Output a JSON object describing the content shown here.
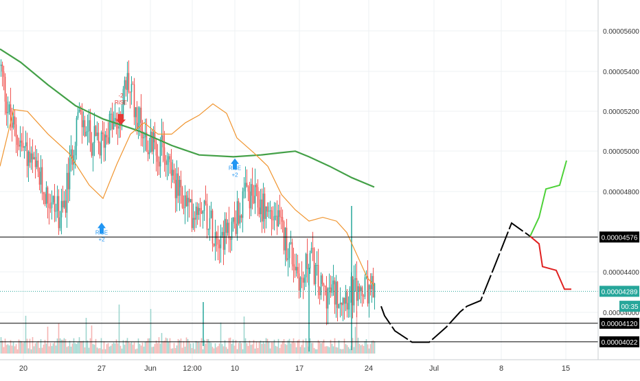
{
  "chart_data": {
    "type": "candlestick",
    "x_axis": {
      "labels": [
        "20",
        "27",
        "Jun",
        "12:00",
        "10",
        "17",
        "24",
        "Jul",
        "8",
        "15"
      ]
    },
    "y_axis": {
      "ticks": [
        "0.00005600",
        "0.00005400",
        "0.00005200",
        "0.00005000",
        "0.00004800",
        "0.00004400",
        "0.00004000"
      ],
      "range": [
        3.96e-05,
        5.8e-05
      ]
    },
    "price_tags": [
      {
        "text": "0.00004576",
        "value": 4.576e-05,
        "style": "dark",
        "line": "solid"
      },
      {
        "text": "0.00004289",
        "value": 4.289e-05,
        "style": "teal",
        "line": "dotted"
      },
      {
        "text": "00:35",
        "value": 4.21e-05,
        "style": "teal",
        "line": "none"
      },
      {
        "text": "0.00004120",
        "value": 4.12e-05,
        "style": "dark",
        "line": "solid"
      },
      {
        "text": "0.00004022",
        "value": 4.022e-05,
        "style": "dark",
        "line": "solid"
      }
    ],
    "signals": [
      {
        "side": "short",
        "upper": "-2",
        "lower": "RiSE",
        "label_value": 5.27e-05,
        "arrow_value": 5.19e-05
      },
      {
        "side": "long",
        "upper": "RiSE",
        "lower": "+2",
        "label_value": 4.59e-05,
        "arrow_value": 4.63e-05
      },
      {
        "side": "long",
        "upper": "RiSE",
        "lower": "+2",
        "label_value": 4.93e-05,
        "arrow_value": 4.97e-05
      }
    ],
    "candles_approx": {
      "count": 270,
      "start": 5.45e-05,
      "waypoints": [
        [
          0,
          5.48e-05
        ],
        [
          15,
          5.18e-05
        ],
        [
          40,
          5e-05
        ],
        [
          70,
          4.78e-05
        ],
        [
          90,
          4.68e-05
        ],
        [
          100,
          4.9e-05
        ],
        [
          112,
          5.22e-05
        ],
        [
          130,
          5.1e-05
        ],
        [
          145,
          5.05e-05
        ],
        [
          160,
          5.18e-05
        ],
        [
          170,
          5.15e-05
        ],
        [
          185,
          5.4e-05
        ],
        [
          200,
          5.22e-05
        ],
        [
          215,
          5.08e-05
        ],
        [
          245,
          5e-05
        ],
        [
          258,
          4.82e-05
        ],
        [
          278,
          4.7e-05
        ],
        [
          292,
          4.78e-05
        ],
        [
          310,
          4.62e-05
        ],
        [
          330,
          4.58e-05
        ],
        [
          360,
          4.8e-05
        ],
        [
          400,
          4.68e-05
        ],
        [
          425,
          4.48e-05
        ],
        [
          440,
          4.32e-05
        ],
        [
          450,
          4.5e-05
        ],
        [
          465,
          4.3e-05
        ],
        [
          480,
          4.28e-05
        ]
      ]
    },
    "series": [
      {
        "color": "#43a047",
        "points": [
          [
            0,
            5.57e-05
          ],
          [
            30,
            5.5e-05
          ],
          [
            70,
            5.38e-05
          ],
          [
            110,
            5.27e-05
          ],
          [
            150,
            5.2e-05
          ],
          [
            200,
            5.14e-05
          ],
          [
            250,
            5.06e-05
          ],
          [
            290,
            5.01e-05
          ],
          [
            340,
            5e-05
          ],
          [
            380,
            5.01e-05
          ],
          [
            405,
            5.02e-05
          ],
          [
            430,
            5.03e-05
          ],
          [
            450,
            5e-05
          ],
          [
            480,
            4.95e-05
          ],
          [
            512,
            4.89e-05
          ],
          [
            545,
            4.84e-05
          ]
        ]
      },
      {
        "color": "#f0942e",
        "points": [
          [
            0,
            4.95e-05
          ],
          [
            20,
            5.25e-05
          ],
          [
            40,
            5.24e-05
          ],
          [
            70,
            5.12e-05
          ],
          [
            100,
            5.02e-05
          ],
          [
            130,
            4.85e-05
          ],
          [
            150,
            4.78e-05
          ],
          [
            170,
            4.96e-05
          ],
          [
            190,
            5.12e-05
          ],
          [
            210,
            5.18e-05
          ],
          [
            230,
            5.12e-05
          ],
          [
            250,
            5.12e-05
          ],
          [
            270,
            5.18e-05
          ],
          [
            290,
            5.22e-05
          ],
          [
            310,
            5.28e-05
          ],
          [
            330,
            5.23e-05
          ],
          [
            345,
            5.1e-05
          ],
          [
            370,
            5.02e-05
          ],
          [
            390,
            4.95e-05
          ],
          [
            410,
            4.8e-05
          ],
          [
            430,
            4.72e-05
          ],
          [
            450,
            4.66e-05
          ],
          [
            470,
            4.68e-05
          ],
          [
            490,
            4.66e-05
          ],
          [
            505,
            4.6e-05
          ],
          [
            520,
            4.48e-05
          ],
          [
            535,
            4.36e-05
          ],
          [
            545,
            4.32e-05
          ]
        ]
      }
    ],
    "projection": {
      "black_path": [
        [
          555,
          4.21e-05
        ],
        [
          560,
          4.16e-05
        ],
        [
          575,
          4.08e-05
        ],
        [
          600,
          4.02e-05
        ],
        [
          625,
          4.02e-05
        ],
        [
          650,
          4.1e-05
        ],
        [
          670,
          4.18e-05
        ],
        [
          680,
          4.21e-05
        ],
        [
          700,
          4.24e-05
        ],
        [
          720,
          4.42e-05
        ],
        [
          745,
          4.65e-05
        ],
        [
          772,
          4.58e-05
        ]
      ],
      "green_path": [
        [
          772,
          4.58e-05
        ],
        [
          785,
          4.68e-05
        ],
        [
          795,
          4.83e-05
        ],
        [
          815,
          4.85e-05
        ],
        [
          825,
          4.98e-05
        ]
      ],
      "red_path": [
        [
          772,
          4.58e-05
        ],
        [
          785,
          4.54e-05
        ],
        [
          790,
          4.42e-05
        ],
        [
          810,
          4.4e-05
        ],
        [
          822,
          4.3e-05
        ],
        [
          832,
          4.3e-05
        ]
      ]
    }
  }
}
